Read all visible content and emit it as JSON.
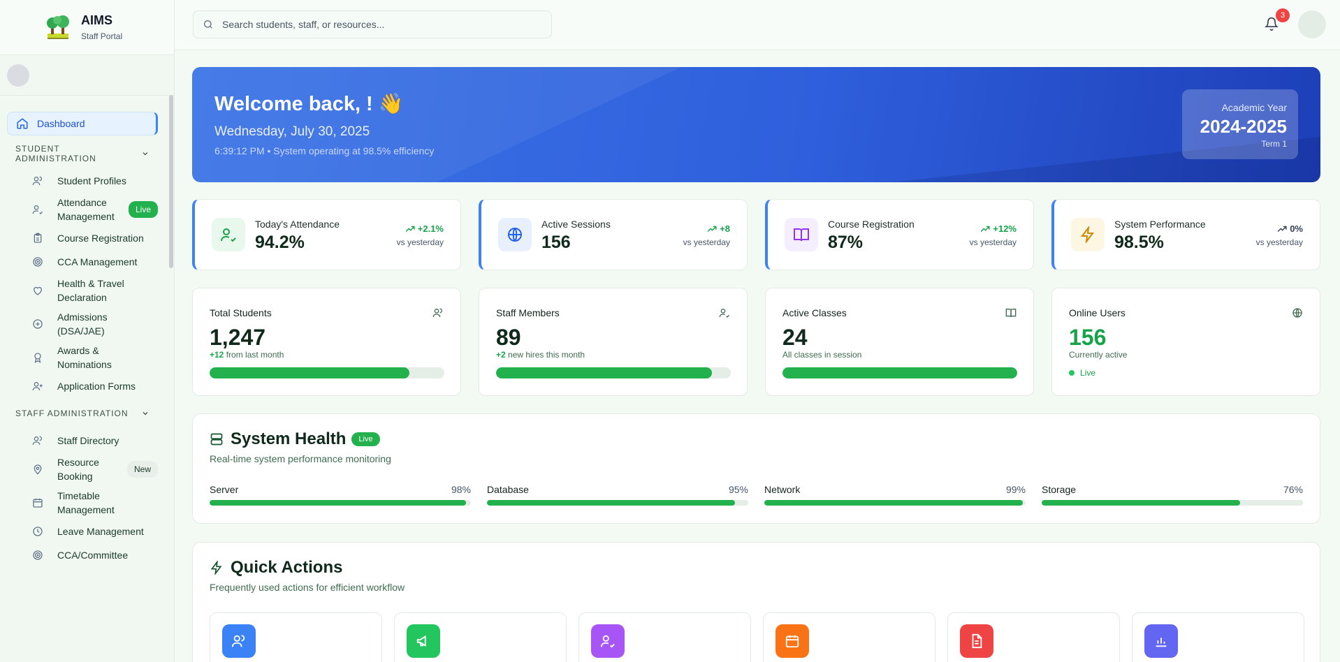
{
  "app": {
    "title": "AIMS",
    "subtitle": "Staff Portal"
  },
  "search": {
    "placeholder": "Search students, staff, or resources..."
  },
  "notifications": {
    "count": "3"
  },
  "sidebar": {
    "dashboard": "Dashboard",
    "student_section": "STUDENT ADMINISTRATION",
    "student_items": [
      {
        "label": "Student Profiles",
        "icon": "users-icon"
      },
      {
        "label": "Attendance Management",
        "icon": "user-check-icon",
        "badge": "Live"
      },
      {
        "label": "Course Registration",
        "icon": "clipboard-icon"
      },
      {
        "label": "CCA Management",
        "icon": "target-icon"
      },
      {
        "label": "Health & Travel Declaration",
        "icon": "heart-icon"
      },
      {
        "label": "Admissions (DSA/JAE)",
        "icon": "plus-circle-icon"
      },
      {
        "label": "Awards & Nominations",
        "icon": "award-icon"
      },
      {
        "label": "Application Forms",
        "icon": "user-plus-icon"
      }
    ],
    "staff_section": "STAFF ADMINISTRATION",
    "staff_items": [
      {
        "label": "Staff Directory",
        "icon": "users-icon"
      },
      {
        "label": "Resource Booking",
        "icon": "map-pin-icon",
        "badge": "New"
      },
      {
        "label": "Timetable Management",
        "icon": "calendar-icon"
      },
      {
        "label": "Leave Management",
        "icon": "clock-icon"
      },
      {
        "label": "CCA/Committee",
        "icon": "target-icon"
      }
    ]
  },
  "hero": {
    "greeting": "Welcome back, ! 👋",
    "date": "Wednesday, July 30, 2025",
    "status": "6:39:12 PM • System operating at 98.5% efficiency",
    "academic_year_label": "Academic Year",
    "academic_year": "2024-2025",
    "term": "Term 1"
  },
  "kpis": [
    {
      "label": "Today's Attendance",
      "value": "94.2%",
      "change": "+2.1%",
      "vs": "vs yesterday",
      "icon": "user-check-icon",
      "color": "#16a34a"
    },
    {
      "label": "Active Sessions",
      "value": "156",
      "change": "+8",
      "vs": "vs yesterday",
      "icon": "globe-icon",
      "color": "#2563eb"
    },
    {
      "label": "Course Registration",
      "value": "87%",
      "change": "+12%",
      "vs": "vs yesterday",
      "icon": "book-open-icon",
      "color": "#9333ea"
    },
    {
      "label": "System Performance",
      "value": "98.5%",
      "change": "0%",
      "vs": "vs yesterday",
      "icon": "zap-icon",
      "color": "#ca8a04"
    }
  ],
  "stats": [
    {
      "label": "Total Students",
      "value": "1,247",
      "sub_strong": "+12",
      "sub": "from last month",
      "progress": 0.85,
      "icon": "users-icon"
    },
    {
      "label": "Staff Members",
      "value": "89",
      "sub_strong": "+2",
      "sub": "new hires this month",
      "progress": 0.92,
      "icon": "user-check-icon"
    },
    {
      "label": "Active Classes",
      "value": "24",
      "sub_strong": "",
      "sub": "All classes in session",
      "progress": 1.0,
      "icon": "book-open-icon"
    },
    {
      "label": "Online Users",
      "value": "156",
      "sub_strong": "",
      "sub": "Currently active",
      "live": "Live",
      "icon": "globe-icon"
    }
  ],
  "system_health": {
    "title": "System Health",
    "badge": "Live",
    "description": "Real-time system performance monitoring",
    "metrics": [
      {
        "label": "Server",
        "value": "98%",
        "level": 0.98
      },
      {
        "label": "Database",
        "value": "95%",
        "level": 0.95
      },
      {
        "label": "Network",
        "value": "99%",
        "level": 0.99
      },
      {
        "label": "Storage",
        "value": "76%",
        "level": 0.76
      }
    ]
  },
  "quick_actions": {
    "title": "Quick Actions",
    "description": "Frequently used actions for efficient workflow",
    "items": [
      {
        "icon": "users-icon",
        "color": "#3b82f6"
      },
      {
        "icon": "megaphone-icon",
        "color": "#22c55e"
      },
      {
        "icon": "user-check-icon",
        "color": "#a855f7"
      },
      {
        "icon": "calendar-icon",
        "color": "#f97316"
      },
      {
        "icon": "file-text-icon",
        "color": "#ef4444"
      },
      {
        "icon": "bar-chart-icon",
        "color": "#6366f1"
      }
    ]
  }
}
